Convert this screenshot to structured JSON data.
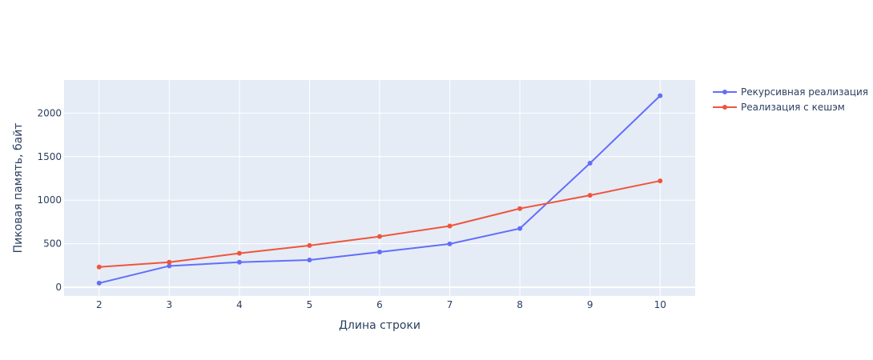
{
  "chart_data": {
    "type": "line",
    "title": "",
    "xlabel": "Длина строки",
    "ylabel": "Пиковая память, байт",
    "x": [
      2,
      3,
      4,
      5,
      6,
      7,
      8,
      9,
      10
    ],
    "xlim": [
      1.5,
      10.5
    ],
    "ylim": [
      -100,
      2380
    ],
    "xticks": [
      "2",
      "3",
      "4",
      "5",
      "6",
      "7",
      "8",
      "9",
      "10"
    ],
    "yticks": [
      0,
      500,
      1000,
      1500,
      2000
    ],
    "grid": true,
    "legend_position": "top-right",
    "series": [
      {
        "name": "Рекурсивная реализация",
        "color": "#636efa",
        "values": [
          48,
          245,
          288,
          313,
          405,
          498,
          675,
          1425,
          2200
        ]
      },
      {
        "name": "Реализация с кешэм",
        "color": "#ef553b",
        "values": [
          233,
          288,
          390,
          480,
          583,
          704,
          904,
          1056,
          1222
        ]
      }
    ],
    "colors": {
      "plot_background": "#e5ecf6",
      "grid": "#ffffff",
      "text": "#2a3f5f"
    }
  }
}
